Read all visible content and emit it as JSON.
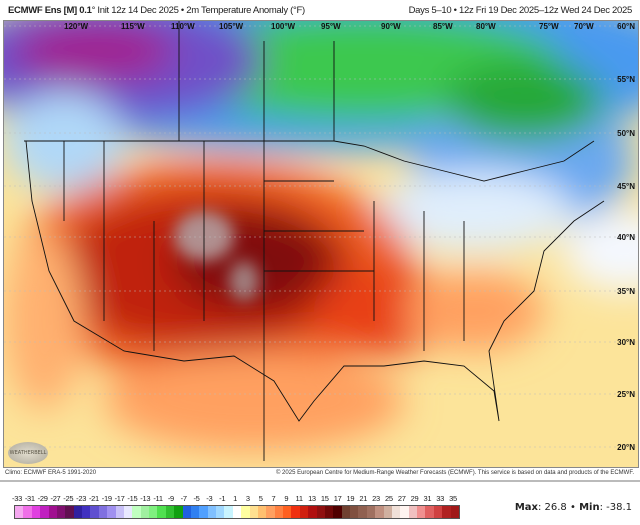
{
  "header": {
    "model": "ECMWF Ens [M] 0.1",
    "degree": "°",
    "init": "Init 12z 14 Dec 2025",
    "separator": "•",
    "product": "2m Temperature Anomaly (°F)",
    "valid": "Days 5–10 • 12z Fri 19 Dec 2025–12z Wed 24 Dec 2025"
  },
  "map": {
    "longitude_labels": [
      "120°W",
      "115°W",
      "110°W",
      "105°W",
      "100°W",
      "95°W",
      "90°W",
      "85°W",
      "80°W",
      "75°W",
      "70°W"
    ],
    "latitude_labels": [
      "60°N",
      "55°N",
      "50°N",
      "45°N",
      "40°N",
      "35°N",
      "30°N",
      "25°N",
      "20°N"
    ]
  },
  "footer": {
    "climo": "Climo: ECMWF ERA-5 1991-2020",
    "copyright": "© 2025 European Centre for Medium-Range Weather Forecasts (ECMWF). This service is based on data and products of the ECMWF.",
    "logo": "WEATHERBELL"
  },
  "legend": {
    "ticks": [
      "-33",
      "-31",
      "-29",
      "-27",
      "-25",
      "-23",
      "-21",
      "-19",
      "-17",
      "-15",
      "-13",
      "-11",
      "-9",
      "-7",
      "-5",
      "-3",
      "-1",
      "1",
      "3",
      "5",
      "7",
      "9",
      "11",
      "13",
      "15",
      "17",
      "19",
      "21",
      "23",
      "25",
      "27",
      "29",
      "31",
      "33",
      "35"
    ],
    "colors": [
      "#f5a8f0",
      "#f070e8",
      "#e040e0",
      "#c020c0",
      "#a01090",
      "#801070",
      "#601050",
      "#3020a0",
      "#4030c0",
      "#6050d0",
      "#8070e0",
      "#a090f0",
      "#c8c0f8",
      "#e8e8ff",
      "#c0ffc0",
      "#a0f0a0",
      "#80f080",
      "#50e050",
      "#30c030",
      "#10a010",
      "#2060e0",
      "#3080f0",
      "#50a0ff",
      "#80c0ff",
      "#a0d8ff",
      "#c8f4ff",
      "#ffffff",
      "#ffffa0",
      "#ffe090",
      "#ffc070",
      "#ffa060",
      "#ff8040",
      "#ff6020",
      "#f03010",
      "#d02010",
      "#b01010",
      "#901010",
      "#700808",
      "#500000",
      "#704030",
      "#805040",
      "#906050",
      "#a07060",
      "#c09080",
      "#d0b0a0",
      "#f0e0d8",
      "#fff4f0",
      "#f0c0c0",
      "#f09090",
      "#e06060",
      "#d04040",
      "#b02020",
      "#a01818"
    ],
    "max_label": "Max",
    "max_value": ": 26.8",
    "min_label": "Min",
    "min_value": ": -38.1"
  }
}
